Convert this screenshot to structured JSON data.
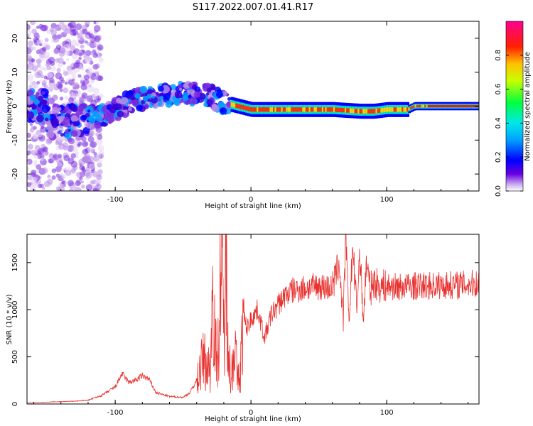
{
  "title": "S117.2022.007.01.41.R17",
  "colors": {
    "snr_line": "#e8322f",
    "spectrogram_palette": [
      "#ffffff",
      "#e6d2f5",
      "#b78ae6",
      "#7a2ee0",
      "#3a00d8",
      "#0000ff",
      "#00a0ff",
      "#00e0e0",
      "#00ff40",
      "#ffff00",
      "#ff8000",
      "#ff0000",
      "#ff00a0"
    ]
  },
  "chart_data": [
    {
      "type": "heatmap",
      "name": "spectrogram",
      "xlabel": "Height of straight line (km)",
      "ylabel": "Frequency (Hz)",
      "xlim": [
        -165,
        168
      ],
      "ylim": [
        -25,
        25
      ],
      "xticks": [
        -100,
        0,
        100
      ],
      "yticks": [
        -20,
        -10,
        0,
        10,
        20
      ],
      "colorbar": {
        "label": "Normalized spectral amplitude",
        "range": [
          0,
          1
        ],
        "ticks": [
          "0.0",
          "0.2",
          "0.4",
          "0.6",
          "0.8"
        ]
      },
      "ridge": [
        {
          "x": -150,
          "f": -5
        },
        {
          "x": -130,
          "f": -4
        },
        {
          "x": -110,
          "f": -3
        },
        {
          "x": -90,
          "f": 1
        },
        {
          "x": -70,
          "f": 3
        },
        {
          "x": -50,
          "f": 4
        },
        {
          "x": -30,
          "f": 3
        },
        {
          "x": -20,
          "f": 1
        },
        {
          "x": -10,
          "f": 0
        },
        {
          "x": 0,
          "f": -1
        },
        {
          "x": 20,
          "f": -1
        },
        {
          "x": 40,
          "f": -1
        },
        {
          "x": 60,
          "f": -1
        },
        {
          "x": 80,
          "f": -1.5
        },
        {
          "x": 90,
          "f": -1.5
        },
        {
          "x": 100,
          "f": -1
        },
        {
          "x": 115,
          "f": -1
        },
        {
          "x": 120,
          "f": 0
        },
        {
          "x": 140,
          "f": 0
        },
        {
          "x": 168,
          "f": 0
        }
      ]
    },
    {
      "type": "line",
      "name": "snr",
      "xlabel": "Height of straight line (km)",
      "ylabel": "SNR (10 * v/v)",
      "xlim": [
        -165,
        168
      ],
      "ylim": [
        0,
        1800
      ],
      "xticks": [
        -100,
        0,
        100
      ],
      "yticks": [
        0,
        500,
        1000,
        1500
      ],
      "x": [
        -165,
        -150,
        -130,
        -120,
        -110,
        -100,
        -95,
        -90,
        -85,
        -80,
        -75,
        -70,
        -60,
        -50,
        -45,
        -40,
        -35,
        -30,
        -28,
        -25,
        -22,
        -20,
        -18,
        -15,
        -12,
        -10,
        -8,
        -6,
        -5,
        -3,
        0,
        5,
        10,
        15,
        20,
        25,
        30,
        40,
        50,
        60,
        65,
        68,
        70,
        72,
        75,
        78,
        80,
        83,
        85,
        88,
        90,
        95,
        100,
        110,
        120,
        140,
        160,
        168
      ],
      "y": [
        10,
        20,
        30,
        40,
        90,
        180,
        320,
        230,
        250,
        300,
        260,
        120,
        80,
        70,
        120,
        250,
        480,
        350,
        1300,
        300,
        1500,
        800,
        1400,
        200,
        700,
        250,
        300,
        850,
        900,
        800,
        900,
        1000,
        700,
        950,
        1050,
        1150,
        1200,
        1230,
        1250,
        1230,
        1500,
        900,
        1800,
        850,
        1650,
        1000,
        1600,
        900,
        1500,
        1200,
        1300,
        1250,
        1250,
        1240,
        1250,
        1260,
        1270,
        1280
      ]
    }
  ]
}
